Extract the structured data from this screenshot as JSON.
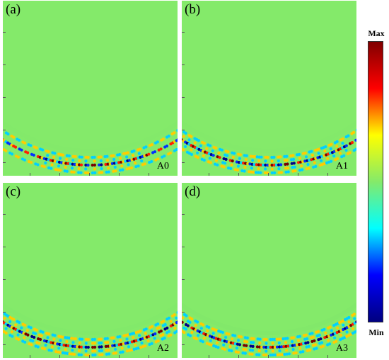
{
  "panels": [
    {
      "id": "a",
      "label": "(a)",
      "mode": "A0",
      "arc_deg": 75,
      "ring_intensity": 0.9,
      "inner_wave": 0.04
    },
    {
      "id": "b",
      "label": "(b)",
      "mode": "A1",
      "arc_deg": 115,
      "ring_intensity": 0.95,
      "inner_wave": 0.05
    },
    {
      "id": "c",
      "label": "(c)",
      "mode": "A2",
      "arc_deg": 160,
      "ring_intensity": 1.0,
      "inner_wave": 0.07
    },
    {
      "id": "d",
      "label": "(d)",
      "mode": "A3",
      "arc_deg": 165,
      "ring_intensity": 1.0,
      "inner_wave": 0.08
    }
  ],
  "colorbar": {
    "max_label": "Max",
    "min_label": "Min",
    "colors": [
      "#000080",
      "#0000ff",
      "#00ffff",
      "#84ea6a",
      "#ffff00",
      "#ff0000",
      "#800000"
    ]
  }
}
